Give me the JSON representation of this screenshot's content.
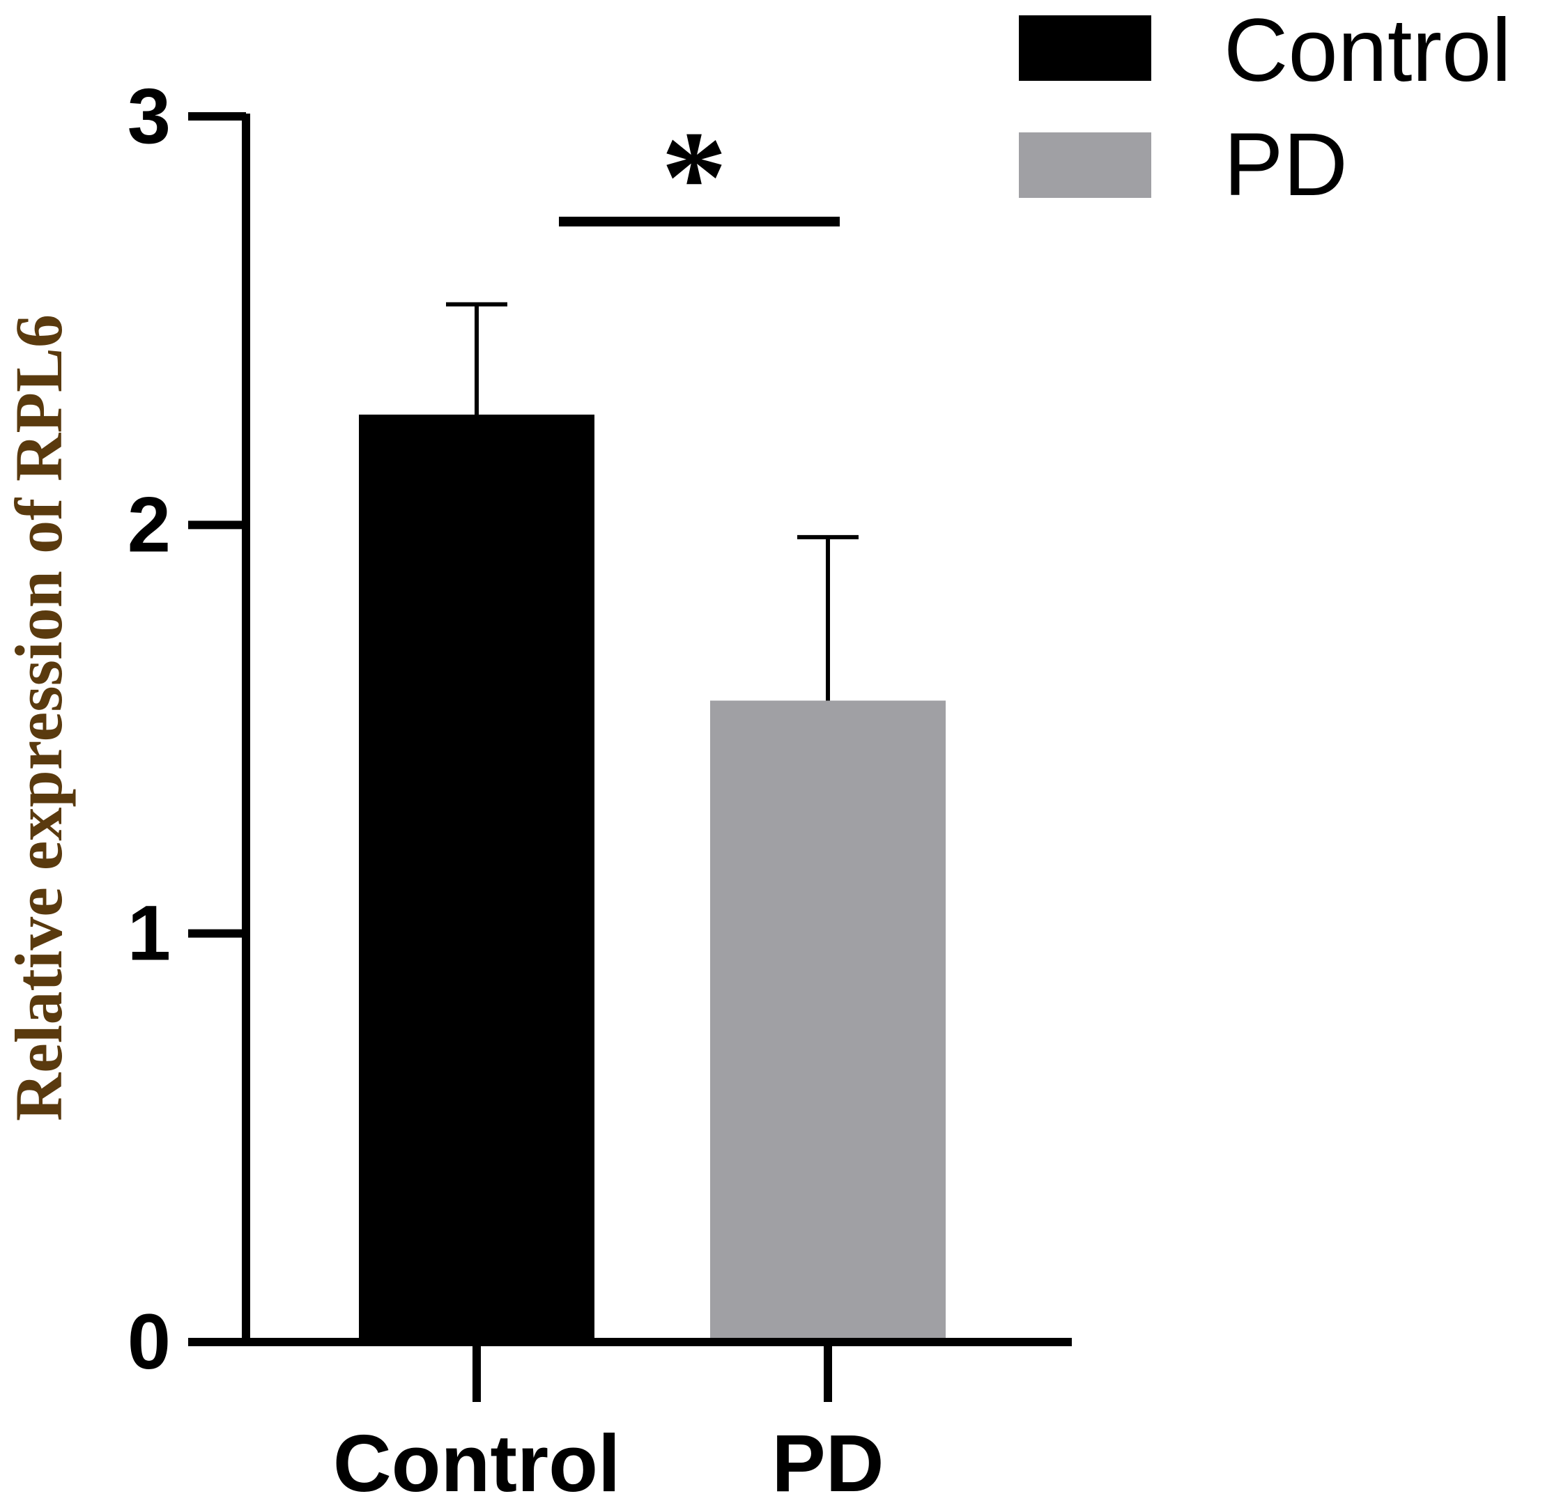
{
  "chart_data": {
    "type": "bar",
    "categories": [
      "Control",
      "PD"
    ],
    "values": [
      2.27,
      1.57
    ],
    "errors": [
      0.27,
      0.4
    ],
    "colors": [
      "#000000",
      "#a0a0a4"
    ],
    "ylabel": "Relative expression of RPL6",
    "ylabel_color": "#5a3a0e",
    "ylim": [
      0,
      3
    ],
    "yticks": [
      0,
      1,
      2,
      3
    ],
    "ytick_labels": [
      "0",
      "1",
      "2",
      "3"
    ],
    "legend": {
      "position": "top-right",
      "entries": [
        {
          "label": "Control",
          "color": "#000000"
        },
        {
          "label": "PD",
          "color": "#a0a0a4"
        }
      ]
    },
    "significance": {
      "label": "*",
      "between": [
        "Control",
        "PD"
      ]
    }
  }
}
